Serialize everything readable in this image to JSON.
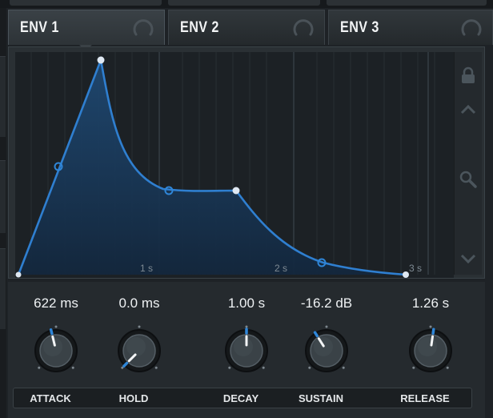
{
  "tabs": [
    {
      "label": "ENV 1",
      "active": true
    },
    {
      "label": "ENV 2",
      "active": false
    },
    {
      "label": "ENV 3",
      "active": false
    }
  ],
  "graph": {
    "time_labels": [
      "1 s",
      "2 s",
      "3 s"
    ],
    "sidebar_icons": [
      "lock-icon",
      "chevron-up-icon",
      "zoom-icon",
      "chevron-down-icon"
    ]
  },
  "knobs": [
    {
      "id": "attack",
      "value": "622 ms",
      "label": "ATTACK",
      "level": 0.45
    },
    {
      "id": "hold",
      "value": "0.0 ms",
      "label": "HOLD",
      "level": 0.0
    },
    {
      "id": "decay",
      "value": "1.00 s",
      "label": "DECAY",
      "level": 0.5
    },
    {
      "id": "sustain",
      "value": "-16.2 dB",
      "label": "SUSTAIN",
      "level": 0.38
    },
    {
      "id": "release",
      "value": "1.26 s",
      "label": "RELEASE",
      "level": 0.53
    }
  ],
  "colors": {
    "accent": "#2f86d8",
    "curve": "#2f7fd0",
    "fill_top": "#1f4a75",
    "fill_bottom": "#13273d",
    "grid": "#2b3339",
    "background": "#1e2226"
  }
}
